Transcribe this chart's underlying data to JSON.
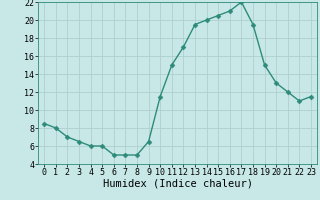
{
  "x": [
    0,
    1,
    2,
    3,
    4,
    5,
    6,
    7,
    8,
    9,
    10,
    11,
    12,
    13,
    14,
    15,
    16,
    17,
    18,
    19,
    20,
    21,
    22,
    23
  ],
  "y": [
    8.5,
    8.0,
    7.0,
    6.5,
    6.0,
    6.0,
    5.0,
    5.0,
    5.0,
    6.5,
    11.5,
    15.0,
    17.0,
    19.5,
    20.0,
    20.5,
    21.0,
    22.0,
    19.5,
    15.0,
    13.0,
    12.0,
    11.0,
    11.5
  ],
  "line_color": "#2e8b7a",
  "marker": "D",
  "marker_size": 2.5,
  "bg_color": "#c8e8e8",
  "grid_color": "#b0d0d0",
  "xlabel": "Humidex (Indice chaleur)",
  "ylim": [
    4,
    22
  ],
  "xlim": [
    -0.5,
    23.5
  ],
  "yticks": [
    4,
    6,
    8,
    10,
    12,
    14,
    16,
    18,
    20,
    22
  ],
  "xticks": [
    0,
    1,
    2,
    3,
    4,
    5,
    6,
    7,
    8,
    9,
    10,
    11,
    12,
    13,
    14,
    15,
    16,
    17,
    18,
    19,
    20,
    21,
    22,
    23
  ],
  "tick_fontsize": 6,
  "xlabel_fontsize": 7.5,
  "linewidth": 1.0
}
